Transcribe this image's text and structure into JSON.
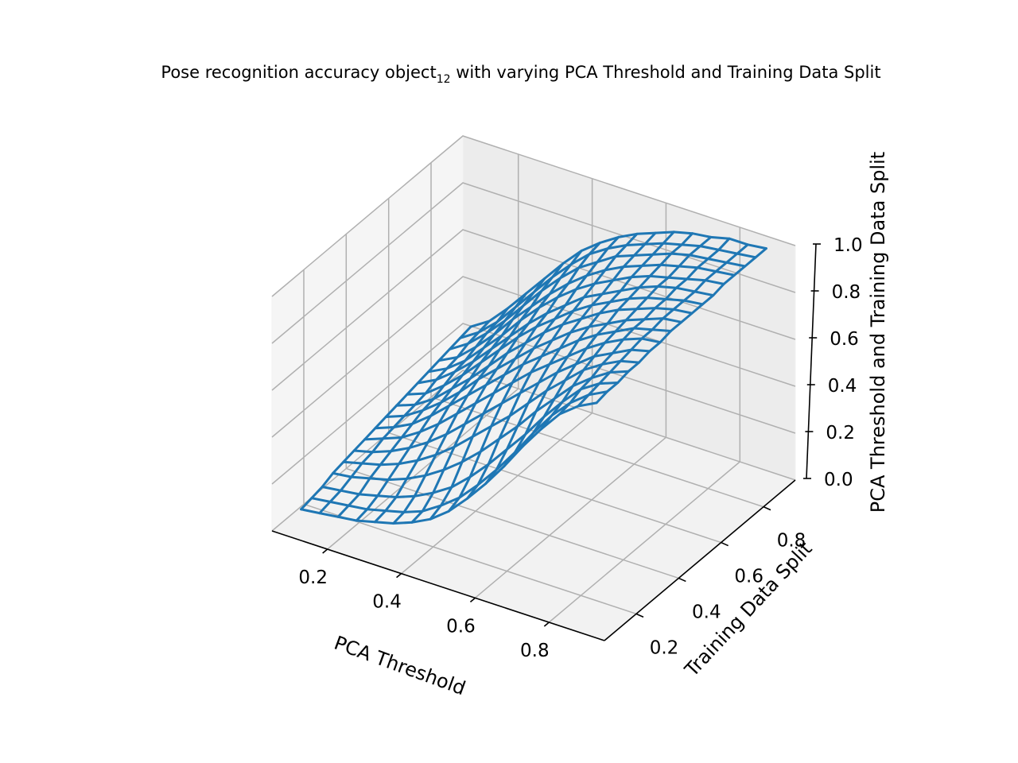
{
  "chart_data": {
    "type": "wireframe",
    "title": "Pose recognition accuracy object",
    "title_subscript": "12",
    "title_suffix": " with varying PCA Threshold and Training Data Split",
    "xlabel": "PCA Threshold",
    "ylabel": "Training Data Split",
    "zlabel": "PCA Threshold and Training Data Split",
    "x_ticks": [
      "0.2",
      "0.4",
      "0.6",
      "0.8"
    ],
    "y_ticks": [
      "0.2",
      "0.4",
      "0.6",
      "0.8"
    ],
    "z_ticks": [
      "0.0",
      "0.2",
      "0.4",
      "0.6",
      "0.8",
      "1.0"
    ],
    "xlim": [
      0.05,
      0.95
    ],
    "ylim": [
      0.05,
      0.95
    ],
    "zlim": [
      0.0,
      1.0
    ],
    "grid": true,
    "x": [
      0.1,
      0.15,
      0.2,
      0.25,
      0.3,
      0.35,
      0.4,
      0.45,
      0.5,
      0.55,
      0.6,
      0.65,
      0.7,
      0.75,
      0.8,
      0.85,
      0.9
    ],
    "y": [
      0.1,
      0.15,
      0.2,
      0.25,
      0.3,
      0.35,
      0.4,
      0.45,
      0.5,
      0.55,
      0.6,
      0.65,
      0.7,
      0.75,
      0.8,
      0.85,
      0.9
    ],
    "z": [
      [
        0.08,
        0.09,
        0.1,
        0.11,
        0.13,
        0.15,
        0.18,
        0.22,
        0.28,
        0.36,
        0.45,
        0.55,
        0.66,
        0.76,
        0.85,
        0.91,
        0.95
      ],
      [
        0.09,
        0.1,
        0.11,
        0.12,
        0.14,
        0.16,
        0.19,
        0.24,
        0.3,
        0.38,
        0.47,
        0.57,
        0.68,
        0.78,
        0.86,
        0.92,
        0.96
      ],
      [
        0.1,
        0.11,
        0.12,
        0.14,
        0.16,
        0.19,
        0.23,
        0.28,
        0.35,
        0.43,
        0.52,
        0.61,
        0.71,
        0.8,
        0.88,
        0.93,
        0.96
      ],
      [
        0.12,
        0.13,
        0.15,
        0.17,
        0.2,
        0.24,
        0.29,
        0.35,
        0.42,
        0.5,
        0.58,
        0.67,
        0.75,
        0.83,
        0.89,
        0.94,
        0.97
      ],
      [
        0.13,
        0.15,
        0.17,
        0.2,
        0.24,
        0.29,
        0.35,
        0.42,
        0.49,
        0.56,
        0.64,
        0.72,
        0.79,
        0.86,
        0.91,
        0.95,
        0.97
      ],
      [
        0.14,
        0.16,
        0.19,
        0.23,
        0.28,
        0.34,
        0.41,
        0.48,
        0.55,
        0.62,
        0.69,
        0.76,
        0.82,
        0.88,
        0.92,
        0.96,
        0.98
      ],
      [
        0.15,
        0.18,
        0.21,
        0.26,
        0.32,
        0.39,
        0.46,
        0.53,
        0.6,
        0.67,
        0.73,
        0.79,
        0.85,
        0.9,
        0.94,
        0.97,
        0.98
      ],
      [
        0.16,
        0.19,
        0.23,
        0.29,
        0.36,
        0.43,
        0.5,
        0.57,
        0.64,
        0.7,
        0.76,
        0.82,
        0.87,
        0.91,
        0.95,
        0.97,
        0.99
      ],
      [
        0.17,
        0.2,
        0.25,
        0.31,
        0.38,
        0.46,
        0.53,
        0.6,
        0.67,
        0.73,
        0.79,
        0.84,
        0.88,
        0.92,
        0.95,
        0.98,
        0.99
      ],
      [
        0.18,
        0.21,
        0.26,
        0.33,
        0.4,
        0.48,
        0.56,
        0.63,
        0.7,
        0.76,
        0.81,
        0.86,
        0.9,
        0.93,
        0.96,
        0.98,
        0.99
      ],
      [
        0.19,
        0.22,
        0.28,
        0.35,
        0.43,
        0.51,
        0.59,
        0.66,
        0.72,
        0.78,
        0.83,
        0.87,
        0.91,
        0.94,
        0.96,
        0.98,
        0.99
      ],
      [
        0.2,
        0.24,
        0.3,
        0.37,
        0.45,
        0.53,
        0.61,
        0.68,
        0.74,
        0.8,
        0.84,
        0.88,
        0.92,
        0.95,
        0.97,
        0.98,
        0.99
      ],
      [
        0.21,
        0.25,
        0.31,
        0.39,
        0.47,
        0.56,
        0.64,
        0.71,
        0.77,
        0.82,
        0.86,
        0.9,
        0.93,
        0.95,
        0.97,
        0.99,
        1.0
      ],
      [
        0.22,
        0.26,
        0.33,
        0.41,
        0.5,
        0.58,
        0.66,
        0.73,
        0.79,
        0.84,
        0.88,
        0.91,
        0.94,
        0.96,
        0.98,
        0.99,
        1.0
      ],
      [
        0.23,
        0.28,
        0.35,
        0.43,
        0.52,
        0.61,
        0.69,
        0.76,
        0.81,
        0.86,
        0.89,
        0.92,
        0.95,
        0.97,
        0.98,
        0.99,
        1.0
      ],
      [
        0.24,
        0.29,
        0.36,
        0.45,
        0.54,
        0.63,
        0.71,
        0.78,
        0.83,
        0.87,
        0.9,
        0.93,
        0.95,
        0.97,
        0.98,
        0.99,
        1.0
      ],
      [
        0.25,
        0.3,
        0.38,
        0.47,
        0.56,
        0.65,
        0.73,
        0.79,
        0.84,
        0.88,
        0.91,
        0.94,
        0.96,
        0.97,
        0.99,
        0.99,
        1.0
      ]
    ],
    "series_color": "#1f77b4"
  }
}
